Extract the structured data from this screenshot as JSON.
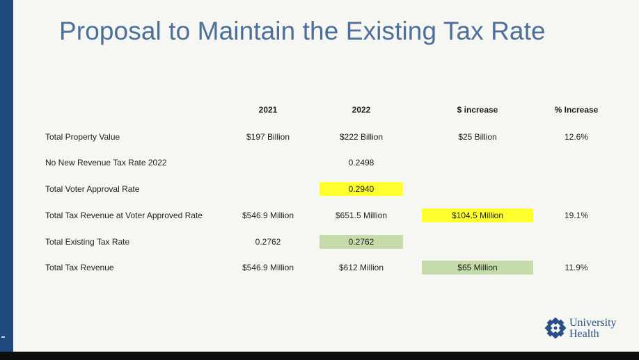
{
  "slide": {
    "title": "Proposal to Maintain the Existing Tax Rate",
    "table": {
      "headers": [
        "2021",
        "2022",
        "$ increase",
        "% Increase"
      ],
      "rows": [
        {
          "label": "Total Property Value",
          "y2021": "$197 Billion",
          "y2022": "$222 Billion",
          "increase": "$25 Billion",
          "pct": "12.6%"
        },
        {
          "label": "No New Revenue Tax Rate 2022",
          "y2021": "",
          "y2022": "0.2498",
          "increase": "",
          "pct": ""
        },
        {
          "label": "Total Voter Approval Rate",
          "y2021": "",
          "y2022": "0.2940",
          "increase": "",
          "pct": ""
        },
        {
          "label": "Total Tax Revenue at Voter Approved Rate",
          "y2021": "$546.9 Million",
          "y2022": "$651.5 Million",
          "increase": "$104.5 Million",
          "pct": "19.1%"
        },
        {
          "label": "Total Existing Tax Rate",
          "y2021": "0.2762",
          "y2022": "0.2762",
          "increase": "",
          "pct": ""
        },
        {
          "label": "Total Tax Revenue",
          "y2021": "$546.9 Million",
          "y2022": "$612 Million",
          "increase": "$65 Million",
          "pct": "11.9%"
        }
      ]
    },
    "logo": {
      "line1": "University",
      "line2": "Health",
      "icon": "university-health-emblem-icon"
    }
  },
  "colors": {
    "title": "#4d6f9c",
    "sidebar": "#20497e",
    "highlight_yellow": "#ffff2e",
    "highlight_green": "#c5dcaa",
    "logo_blue": "#2a4f86"
  }
}
